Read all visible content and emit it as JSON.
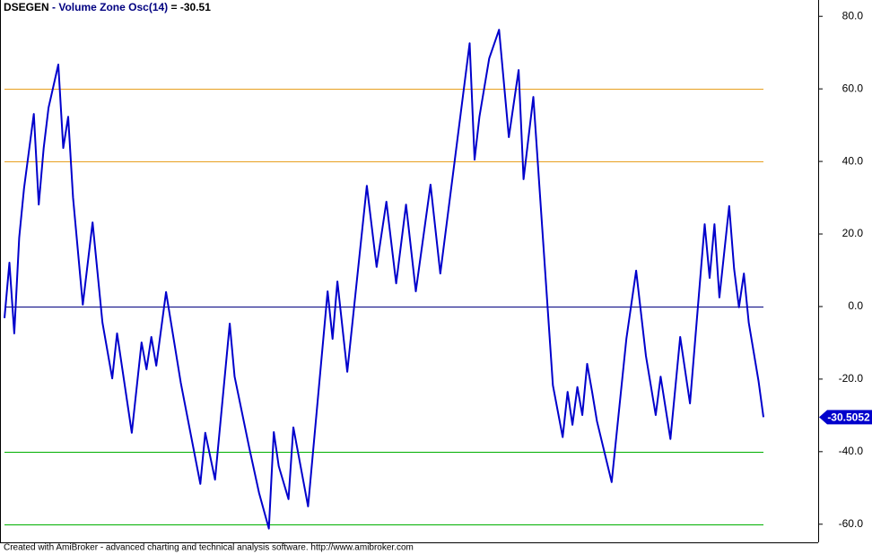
{
  "chart_data": {
    "type": "line",
    "title_parts": [
      {
        "text": "DSEGEN",
        "color": "#000000"
      },
      {
        "text": " - ",
        "color": "#000080"
      },
      {
        "text": "Volume Zone Osc(14)",
        "color": "#000080"
      },
      {
        "text": " = -30.51",
        "color": "#000000"
      }
    ],
    "footer": "Created with AmiBroker - advanced charting and technical analysis software. http://www.amibroker.com",
    "x": [
      0,
      1,
      2,
      3,
      4,
      6,
      7,
      8,
      9,
      11,
      12,
      13,
      14,
      16,
      18,
      20,
      22,
      23,
      26,
      28,
      29,
      30,
      31,
      33,
      36,
      40,
      41,
      43,
      46,
      47,
      50,
      52,
      54,
      55,
      56,
      58,
      59,
      62,
      66,
      67,
      68,
      70,
      74,
      76,
      78,
      80,
      82,
      84,
      87,
      89,
      92,
      95,
      96,
      97,
      99,
      101,
      103,
      105,
      106,
      108,
      112,
      114,
      115,
      116,
      117,
      118,
      119,
      120,
      121,
      124,
      127,
      129,
      131,
      133,
      134,
      136,
      138,
      140,
      143,
      144,
      145,
      146,
      148,
      149,
      150,
      151,
      152,
      154,
      155
    ],
    "series": [
      {
        "name": "Volume Zone Osc(14)",
        "color": "#0000cc",
        "values": [
          -3.2,
          12.1,
          -7.4,
          19.0,
          32.6,
          53.1,
          28.1,
          43.7,
          54.8,
          66.7,
          43.7,
          52.3,
          30.1,
          0.5,
          23.2,
          -4.4,
          -19.8,
          -7.4,
          -34.8,
          -9.9,
          -17.3,
          -8.4,
          -16.3,
          4.0,
          -21.0,
          -48.9,
          -34.8,
          -47.7,
          -4.7,
          -19.3,
          -39.0,
          -51.4,
          -61.2,
          -34.6,
          -44.0,
          -53.1,
          -33.3,
          -55.1,
          4.2,
          -8.9,
          6.9,
          -18.0,
          33.3,
          10.9,
          28.9,
          6.4,
          28.1,
          4.2,
          33.6,
          9.1,
          40.7,
          72.6,
          40.5,
          52.3,
          68.4,
          76.3,
          46.7,
          65.2,
          35.1,
          57.8,
          -21.7,
          -36.0,
          -23.5,
          -32.6,
          -22.2,
          -29.9,
          -15.8,
          -23.5,
          -31.6,
          -48.4,
          -8.9,
          9.9,
          -13.6,
          -29.9,
          -19.3,
          -36.5,
          -8.4,
          -26.7,
          22.7,
          7.9,
          22.7,
          2.5,
          27.7,
          10.4,
          -0.2,
          9.1,
          -4.4,
          -20.5,
          -30.5052
        ]
      }
    ],
    "last_value": {
      "value": -30.5052,
      "label": "-30.5052"
    },
    "reference_lines": [
      {
        "value": 60,
        "color": "#e8a020"
      },
      {
        "value": 40,
        "color": "#e8a020"
      },
      {
        "value": 0,
        "color": "#000080"
      },
      {
        "value": -40,
        "color": "#00b000"
      },
      {
        "value": -60,
        "color": "#00b000"
      }
    ],
    "xlim": [
      0,
      155
    ],
    "ylim": [
      -65,
      84.5
    ],
    "yticks": [
      {
        "value": 80,
        "label": "80.0"
      },
      {
        "value": 60,
        "label": "60.0"
      },
      {
        "value": 40,
        "label": "40.0"
      },
      {
        "value": 20,
        "label": "20.0"
      },
      {
        "value": 0,
        "label": "0.0"
      },
      {
        "value": -20,
        "label": "-20.0"
      },
      {
        "value": -40,
        "label": "-40.0"
      },
      {
        "value": -60,
        "label": "-60.0"
      }
    ]
  }
}
